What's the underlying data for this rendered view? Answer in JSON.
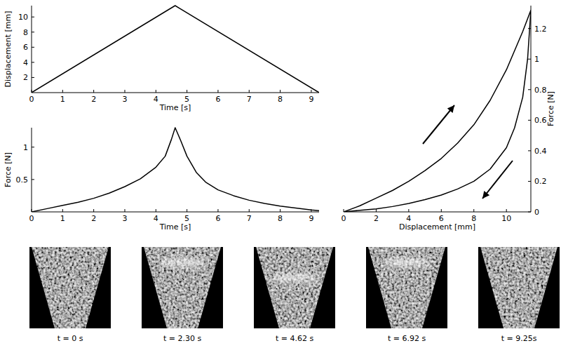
{
  "chart_data": [
    {
      "type": "line",
      "x_label": "Time [s]",
      "y_label": "Displacement [mm]",
      "x": [
        0,
        4.62,
        9.25
      ],
      "series": [
        {
          "color": "#000000",
          "values": [
            0,
            11.5,
            0
          ]
        }
      ],
      "xlim": [
        0,
        9.25
      ],
      "ylim": [
        0,
        11.5
      ],
      "xticks": [
        0,
        1,
        2,
        3,
        4,
        5,
        6,
        7,
        8,
        9
      ],
      "yticks": [
        2,
        4,
        6,
        8,
        10
      ]
    },
    {
      "type": "line",
      "x_label": "Time [s]",
      "y_label": "Force [N]",
      "x": [
        0,
        0.5,
        1,
        1.5,
        2,
        2.5,
        3,
        3.5,
        4,
        4.3,
        4.5,
        4.62,
        4.8,
        5,
        5.3,
        5.6,
        6,
        6.5,
        7,
        7.5,
        8,
        8.5,
        9,
        9.25
      ],
      "series": [
        {
          "color": "#000000",
          "values": [
            0,
            0.05,
            0.1,
            0.15,
            0.21,
            0.29,
            0.39,
            0.51,
            0.69,
            0.86,
            1.12,
            1.3,
            1.1,
            0.86,
            0.61,
            0.46,
            0.34,
            0.25,
            0.18,
            0.13,
            0.09,
            0.06,
            0.03,
            0.02
          ]
        }
      ],
      "xlim": [
        0,
        9.25
      ],
      "ylim": [
        0,
        1.3
      ],
      "xticks": [
        0,
        1,
        2,
        3,
        4,
        5,
        6,
        7,
        8,
        9
      ],
      "yticks": [
        0.5,
        1
      ]
    },
    {
      "type": "line",
      "x_label": "Displacement [mm]",
      "y_label": "Force [N]",
      "series": [
        {
          "color": "#000000",
          "x": [
            0,
            1,
            2,
            3,
            4,
            5,
            6,
            7,
            8,
            9,
            10,
            11,
            11.5
          ],
          "values": [
            0,
            0.04,
            0.09,
            0.14,
            0.2,
            0.27,
            0.35,
            0.45,
            0.57,
            0.73,
            0.93,
            1.18,
            1.32
          ]
        },
        {
          "color": "#000000",
          "x": [
            11.5,
            11.3,
            11,
            10.5,
            10,
            9,
            8,
            7,
            6,
            5,
            4,
            3,
            2,
            1,
            0
          ],
          "values": [
            1.32,
            1.0,
            0.75,
            0.55,
            0.42,
            0.28,
            0.2,
            0.15,
            0.11,
            0.08,
            0.055,
            0.035,
            0.02,
            0.01,
            0
          ]
        }
      ],
      "xlim": [
        0,
        11.5
      ],
      "ylim": [
        0,
        1.35
      ],
      "xticks": [
        0,
        2,
        4,
        6,
        8,
        10
      ],
      "yticks": [
        0,
        0.2,
        0.4,
        0.6,
        0.8,
        1,
        1.2
      ]
    }
  ],
  "images": [
    {
      "caption": "t = 0 s"
    },
    {
      "caption": "t = 2.30 s"
    },
    {
      "caption": "t = 4.62 s"
    },
    {
      "caption": "t = 6.92 s"
    },
    {
      "caption": "t = 9.25s"
    }
  ]
}
